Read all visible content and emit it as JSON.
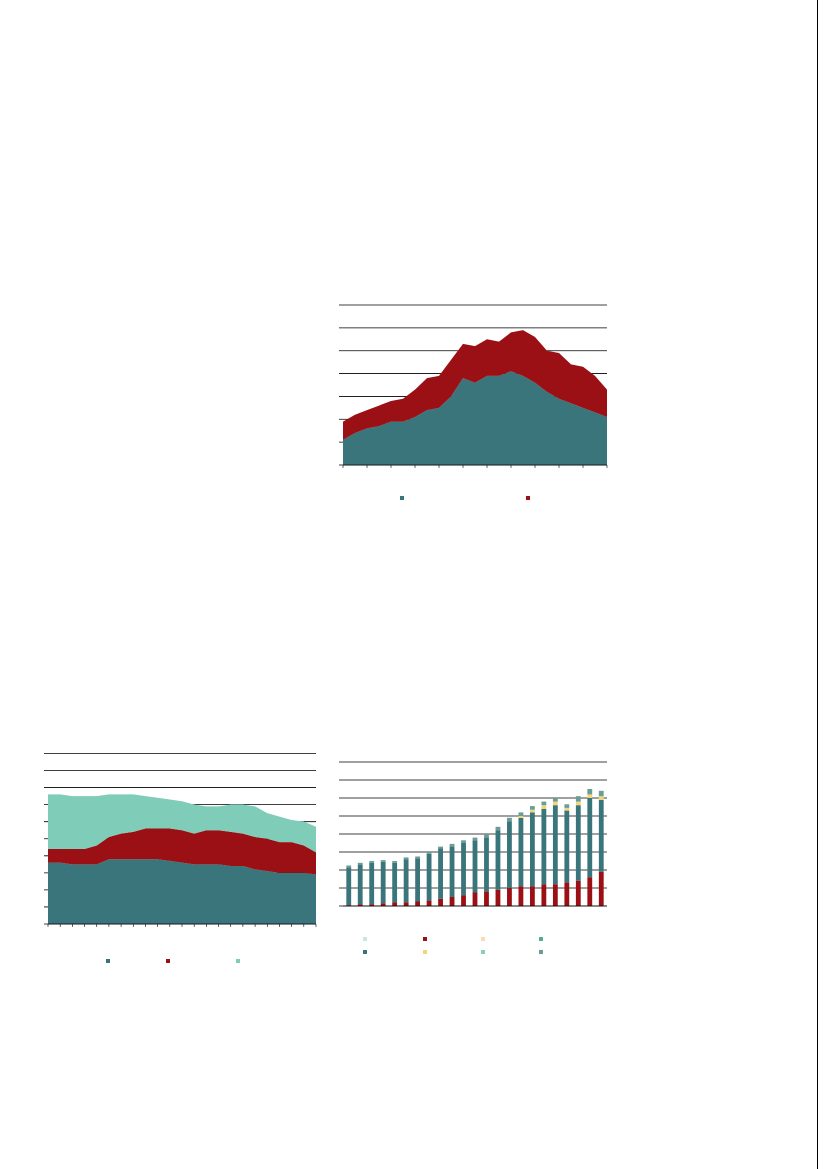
{
  "colors": {
    "teal": "#3a757c",
    "red": "#9b1014",
    "mint": "#7fccb8",
    "light_teal": "#c6e6e0",
    "peach": "#f9d9b8",
    "green_teal": "#4fae97",
    "yellow": "#f2d77a",
    "aqua": "#8ccbc0",
    "grey_teal": "#6a9d96"
  },
  "chart_data": [
    {
      "type": "area",
      "stacked": true,
      "ylim": [
        0,
        7
      ],
      "grid": true,
      "legend_position": "bottom",
      "x": [
        0,
        1,
        2,
        3,
        4,
        5,
        6,
        7,
        8,
        9,
        10,
        11,
        12,
        13,
        14,
        15,
        16,
        17,
        18,
        19,
        20,
        21,
        22
      ],
      "series": [
        {
          "color": "#3a757c",
          "values": [
            1.1,
            1.4,
            1.6,
            1.7,
            1.9,
            1.9,
            2.1,
            2.4,
            2.5,
            3.0,
            3.8,
            3.6,
            3.9,
            3.9,
            4.1,
            3.9,
            3.6,
            3.2,
            2.9,
            2.7,
            2.5,
            2.3,
            2.1
          ]
        },
        {
          "color": "#9b1014",
          "values": [
            0.8,
            0.8,
            0.8,
            0.9,
            0.9,
            1.0,
            1.2,
            1.4,
            1.4,
            1.6,
            1.5,
            1.6,
            1.6,
            1.5,
            1.7,
            2.0,
            2.0,
            1.8,
            2.0,
            1.7,
            1.8,
            1.6,
            1.2
          ]
        }
      ]
    },
    {
      "type": "area",
      "stacked": true,
      "ylim": [
        0,
        9.5
      ],
      "grid": true,
      "legend_position": "bottom",
      "x": [
        0,
        1,
        2,
        3,
        4,
        5,
        6,
        7,
        8,
        9,
        10,
        11,
        12,
        13,
        14,
        15,
        16,
        17,
        18,
        19,
        20,
        21,
        22
      ],
      "series": [
        {
          "color": "#3a757c",
          "values": [
            3.6,
            3.6,
            3.5,
            3.5,
            3.5,
            3.8,
            3.8,
            3.8,
            3.8,
            3.8,
            3.7,
            3.6,
            3.5,
            3.5,
            3.5,
            3.4,
            3.4,
            3.2,
            3.1,
            3.0,
            3.0,
            3.0,
            2.9
          ]
        },
        {
          "color": "#9b1014",
          "values": [
            0.8,
            0.8,
            0.9,
            0.9,
            1.1,
            1.3,
            1.5,
            1.6,
            1.8,
            1.8,
            1.9,
            1.9,
            1.8,
            2.0,
            2.0,
            2.0,
            1.9,
            1.9,
            1.9,
            1.8,
            1.8,
            1.6,
            1.3
          ]
        },
        {
          "color": "#7fccb8",
          "values": [
            3.2,
            3.2,
            3.1,
            3.1,
            2.9,
            2.5,
            2.3,
            2.2,
            1.9,
            1.8,
            1.7,
            1.7,
            1.7,
            1.4,
            1.4,
            1.6,
            1.7,
            1.8,
            1.5,
            1.5,
            1.3,
            1.4,
            1.5
          ]
        }
      ]
    },
    {
      "type": "bar",
      "stacked": true,
      "ylim": [
        0,
        8
      ],
      "grid": true,
      "legend_position": "bottom",
      "x": [
        0,
        1,
        2,
        3,
        4,
        5,
        6,
        7,
        8,
        9,
        10,
        11,
        12,
        13,
        14,
        15,
        16,
        17,
        18,
        19,
        20,
        21,
        22
      ],
      "series": [
        {
          "color": "#9b1014",
          "values": [
            0.05,
            0.1,
            0.1,
            0.15,
            0.2,
            0.2,
            0.25,
            0.3,
            0.4,
            0.5,
            0.6,
            0.75,
            0.8,
            0.9,
            1.0,
            1.1,
            1.1,
            1.2,
            1.2,
            1.3,
            1.4,
            1.6,
            1.9
          ]
        },
        {
          "color": "#3a757c",
          "values": [
            2.1,
            2.2,
            2.3,
            2.3,
            2.2,
            2.4,
            2.4,
            2.6,
            2.8,
            2.8,
            2.9,
            2.9,
            3.0,
            3.3,
            3.7,
            3.8,
            4.1,
            4.2,
            4.4,
            4.0,
            4.2,
            4.4,
            4.0
          ]
        },
        {
          "color": "#f2d77a",
          "values": [
            0,
            0,
            0,
            0,
            0,
            0,
            0,
            0,
            0,
            0,
            0,
            0,
            0,
            0,
            0,
            0.1,
            0.15,
            0.2,
            0.2,
            0.15,
            0.2,
            0.2,
            0.2
          ]
        },
        {
          "color": "#6a9d96",
          "values": [
            0.1,
            0.1,
            0.1,
            0.1,
            0.1,
            0.1,
            0.1,
            0.1,
            0.1,
            0.15,
            0.15,
            0.15,
            0.2,
            0.2,
            0.2,
            0.2,
            0.2,
            0.2,
            0.2,
            0.2,
            0.3,
            0.3,
            0.3
          ]
        }
      ]
    }
  ]
}
